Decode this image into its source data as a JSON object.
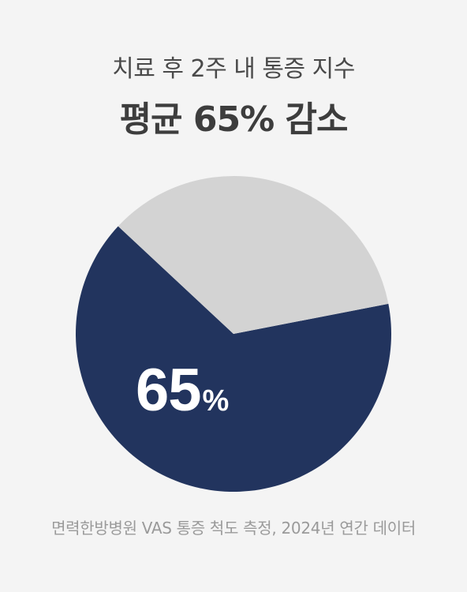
{
  "header": {
    "subtitle": "치료 후 2주 내 통증 지수",
    "title": "평균 65% 감소"
  },
  "chart_data": {
    "type": "pie",
    "categories": [
      "감소",
      ""
    ],
    "values": [
      65,
      35
    ],
    "colors": [
      "#22345e",
      "#d3d3d3"
    ],
    "center_label": {
      "value": "65",
      "unit": "%"
    }
  },
  "footnote": "면력한방병원 VAS 통증 척도 측정, 2024년 연간 데이터"
}
